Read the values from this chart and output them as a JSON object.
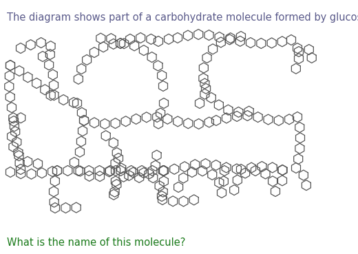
{
  "title_text": "The diagram shows part of a carbohydrate molecule formed by glucose.",
  "question_text": "What is the name of this molecule?",
  "title_color": "#5a5a8a",
  "question_color": "#1a7a1a",
  "title_fontsize": 10.5,
  "question_fontsize": 10.5,
  "bg_color": "#ffffff",
  "hex_color": "#555555",
  "hex_lw": 0.9
}
